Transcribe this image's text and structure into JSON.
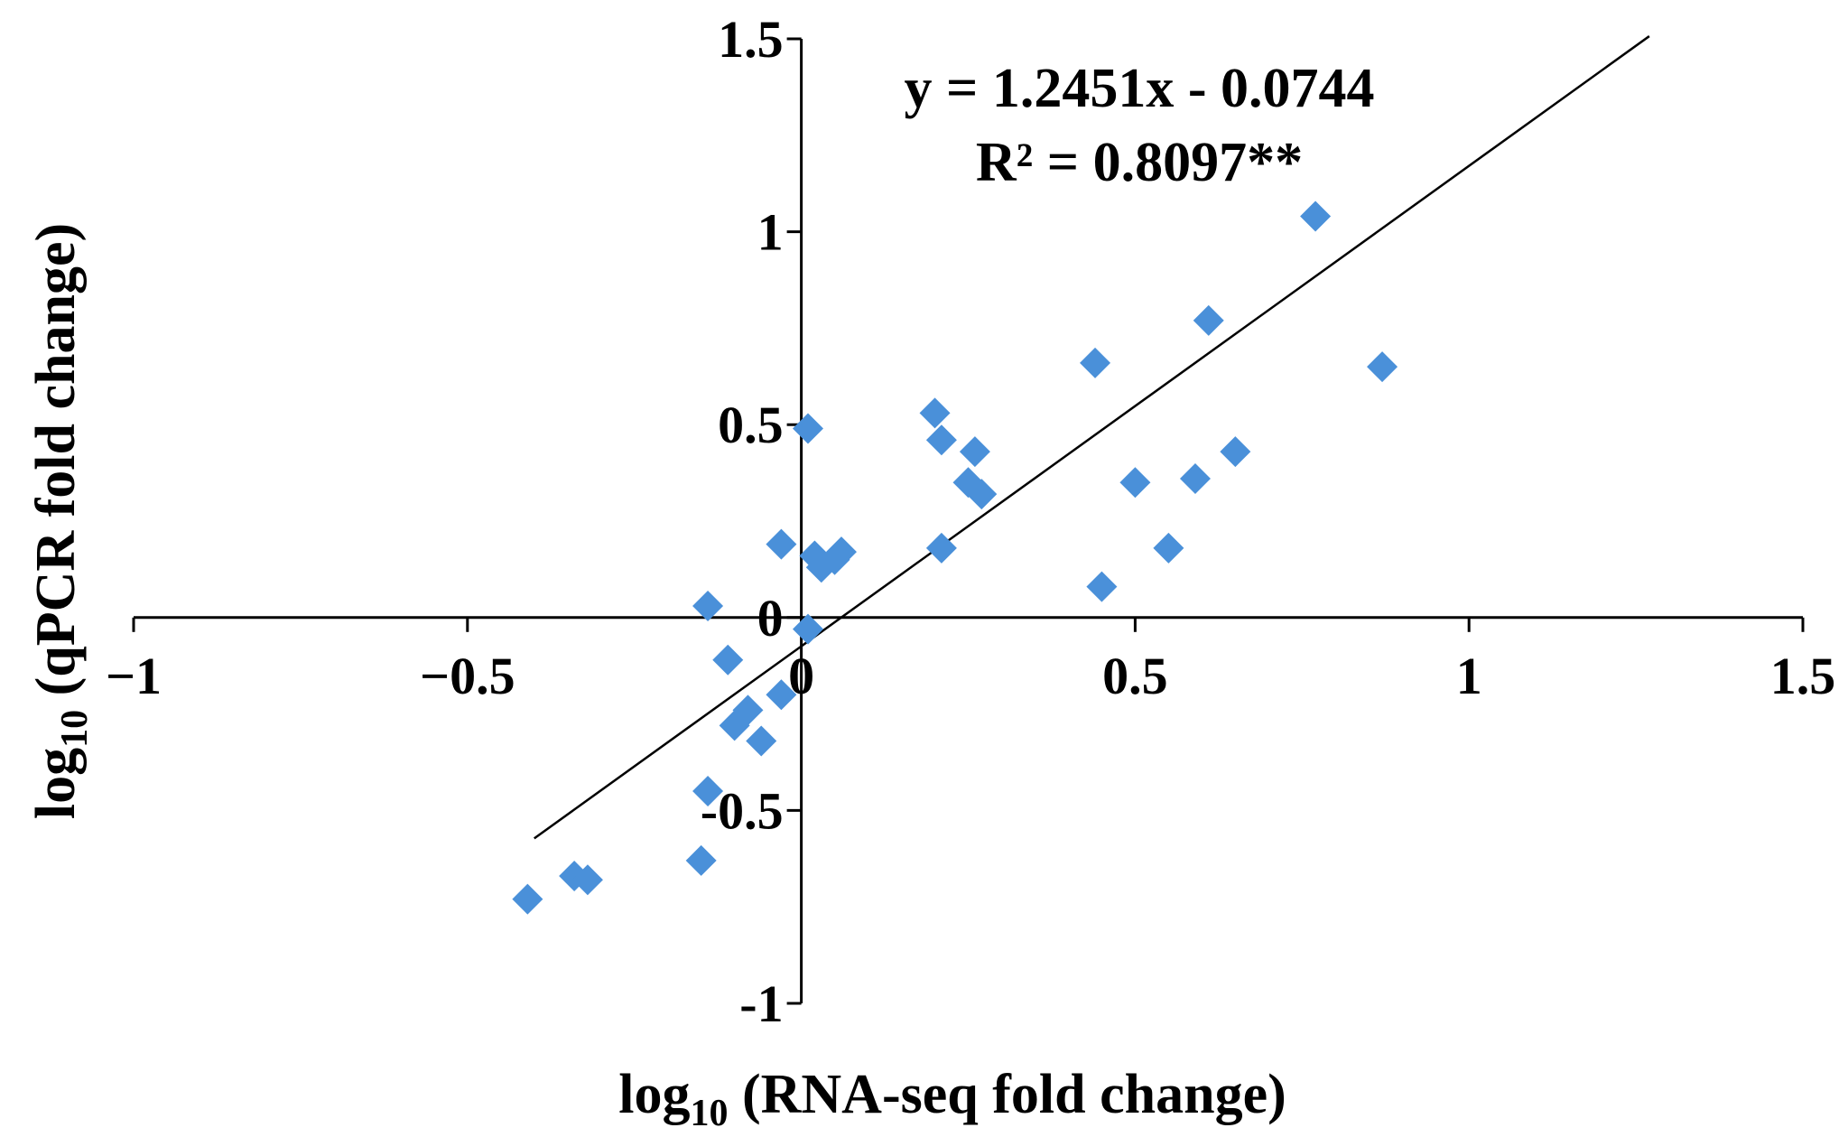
{
  "chart_data": {
    "type": "scatter",
    "xlim": [
      -1,
      1.5
    ],
    "ylim": [
      -1,
      1.5
    ],
    "x_ticks": [
      -1,
      -0.5,
      0,
      0.5,
      1,
      1.5
    ],
    "y_ticks": [
      -1,
      -0.5,
      0,
      0.5,
      1,
      1.5
    ],
    "x_tick_labels": [
      "−1",
      "−0.5",
      "0",
      "0.5",
      "1",
      "1.5"
    ],
    "y_tick_labels": [
      "-1",
      "-0.5",
      "0",
      "0.5",
      "1",
      "1.5"
    ],
    "xlabel": {
      "prefix": "log",
      "subscript": "10",
      "text": " (RNA-seq fold change)"
    },
    "ylabel": {
      "prefix": "log",
      "subscript": "10",
      "text": " (qPCR fold change)"
    },
    "grid": false,
    "marker_color": "#4A90D9",
    "line_color": "#000000",
    "annotation": {
      "equation": "y = 1.2451x - 0.0744",
      "r_squared": "R² = 0.8097**"
    },
    "trendline": {
      "slope": 1.2451,
      "intercept": -0.0744,
      "x_range": [
        -0.4,
        1.27
      ]
    },
    "points": [
      {
        "x": 0.77,
        "y": 1.04
      },
      {
        "x": 0.87,
        "y": 0.65
      },
      {
        "x": 0.61,
        "y": 0.77
      },
      {
        "x": 0.44,
        "y": 0.66
      },
      {
        "x": 0.65,
        "y": 0.43
      },
      {
        "x": 0.59,
        "y": 0.36
      },
      {
        "x": 0.5,
        "y": 0.35
      },
      {
        "x": 0.55,
        "y": 0.18
      },
      {
        "x": 0.45,
        "y": 0.08
      },
      {
        "x": 0.2,
        "y": 0.53
      },
      {
        "x": 0.21,
        "y": 0.46
      },
      {
        "x": 0.26,
        "y": 0.43
      },
      {
        "x": 0.25,
        "y": 0.35
      },
      {
        "x": 0.27,
        "y": 0.32
      },
      {
        "x": 0.21,
        "y": 0.18
      },
      {
        "x": 0.01,
        "y": 0.49
      },
      {
        "x": -0.03,
        "y": 0.19
      },
      {
        "x": 0.02,
        "y": 0.16
      },
      {
        "x": 0.03,
        "y": 0.13
      },
      {
        "x": 0.05,
        "y": 0.15
      },
      {
        "x": 0.06,
        "y": 0.17
      },
      {
        "x": -0.14,
        "y": 0.03
      },
      {
        "x": 0.01,
        "y": -0.03
      },
      {
        "x": -0.11,
        "y": -0.11
      },
      {
        "x": -0.03,
        "y": -0.2
      },
      {
        "x": -0.08,
        "y": -0.24
      },
      {
        "x": -0.1,
        "y": -0.28
      },
      {
        "x": -0.06,
        "y": -0.32
      },
      {
        "x": -0.14,
        "y": -0.45
      },
      {
        "x": -0.15,
        "y": -0.63
      },
      {
        "x": -0.34,
        "y": -0.67
      },
      {
        "x": -0.32,
        "y": -0.68
      },
      {
        "x": -0.41,
        "y": -0.73
      }
    ]
  }
}
